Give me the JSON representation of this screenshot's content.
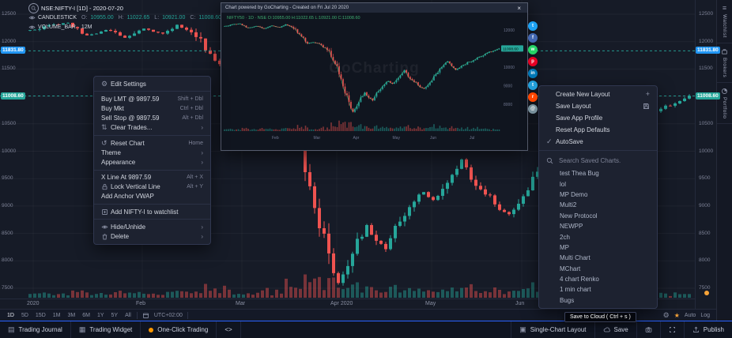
{
  "colors": {
    "bg": "#161b27",
    "panel": "#1d2230",
    "accent_blue": "#2962ff",
    "badge_blue": "#2196f3",
    "up_green": "#26a69a",
    "down_red": "#ef5350",
    "star_orange": "#f7a338",
    "one_click_orange": "#ff9800"
  },
  "legend": {
    "title": "NSE:NIFTY-I [1D] - 2020-07-20",
    "series": "CANDLESTICK",
    "o_label": "O:",
    "o_value": "10955.00",
    "h_label": "H:",
    "h_value": "11022.65",
    "l_label": "L:",
    "l_value": "10921.00",
    "c_label": "C:",
    "c_value": "11008.60",
    "volume_label": "VOLUME_BAR",
    "volume_value": "12M"
  },
  "price_axis": {
    "ticks": [
      "12500",
      "12000",
      "11500",
      "11000",
      "10500",
      "10000",
      "9500",
      "9000",
      "8500",
      "8000",
      "7500"
    ],
    "badge_blue_value": "11831.80",
    "badge_green_value": "11008.60"
  },
  "side_tabs": [
    {
      "label": "Watchlist",
      "icon": "list"
    },
    {
      "label": "Brokers",
      "icon": "briefcase"
    },
    {
      "label": "Portfolio",
      "icon": "pie"
    }
  ],
  "time_toolbar": {
    "ranges": [
      "1D",
      "5D",
      "15D",
      "1M",
      "3M",
      "6M",
      "1Y",
      "5Y",
      "All"
    ],
    "timezone": "UTC+02:00",
    "auto_label": "Auto",
    "log_label": "Log"
  },
  "bottom_bar": {
    "left": [
      {
        "icon": "journal",
        "label": "Trading Journal"
      },
      {
        "icon": "widget",
        "label": "Trading Widget"
      },
      {
        "icon": "dot",
        "label": "One-Click Trading"
      },
      {
        "icon": "code",
        "label": "<>"
      }
    ],
    "right": [
      {
        "icon": "layout",
        "label": "Single-Chart Layout"
      },
      {
        "icon": "cloud",
        "label": "Save"
      },
      {
        "icon": "camera",
        "label": ""
      },
      {
        "icon": "expand",
        "label": ""
      },
      {
        "icon": "publish",
        "label": "Publish"
      }
    ]
  },
  "context_menu": {
    "items": [
      {
        "icon": "gear",
        "label": "Edit Settings"
      },
      {
        "divider": true
      },
      {
        "label": "Buy LMT @ 9897.59",
        "shortcut": "Shift + Dbl"
      },
      {
        "label": "Buy Mkt",
        "shortcut": "Ctrl + Dbl"
      },
      {
        "label": "Sell Stop @ 9897.59",
        "shortcut": "Alt + Dbl"
      },
      {
        "icon": "clear",
        "label": "Clear Trades...",
        "submenu": true
      },
      {
        "divider": true
      },
      {
        "icon": "reset",
        "label": "Reset Chart",
        "shortcut": "Home"
      },
      {
        "label": "Theme",
        "submenu": true
      },
      {
        "label": "Appearance",
        "submenu": true
      },
      {
        "divider": true
      },
      {
        "label": "X Line At 9897.59",
        "shortcut": "Alt + X"
      },
      {
        "icon": "lock",
        "label": "Lock Vertical Line",
        "shortcut": "Alt + Y"
      },
      {
        "label": "Add Anchor VWAP"
      },
      {
        "divider": true
      },
      {
        "icon": "plusbox",
        "label": "Add NIFTY-I to watchlist"
      },
      {
        "divider": true
      },
      {
        "icon": "eye",
        "label": "Hide/Unhide",
        "submenu": true
      },
      {
        "icon": "trash",
        "label": "Delete",
        "submenu": true
      }
    ]
  },
  "layout_menu": {
    "items": [
      {
        "label": "Create New Layout",
        "right_icon": "plus"
      },
      {
        "label": "Save Layout",
        "right_icon": "save"
      },
      {
        "label": "Save App Profile"
      },
      {
        "label": "Reset App Defaults"
      },
      {
        "label": "AutoSave",
        "left_icon": "check"
      }
    ],
    "search_placeholder": "Search Saved Charts.",
    "saved_charts": [
      "test Thea Bug",
      "lol",
      "MP Demo",
      "Multi2",
      "New Protocol",
      "NEWPP",
      "2ch",
      "MP",
      "Multi Chart",
      "MChart",
      "4 chart Renko",
      "1 min chart",
      "Bugs"
    ]
  },
  "popup": {
    "title": "Chart powered by GoCharting - Created on Fri Jul 20 2020",
    "legend": "NIFTY50 · 1D · NSE   O:10955.00  H:11022.65  L:10921.00  C:11008.60",
    "watermark": "GoCharting",
    "close_label": "×",
    "badge_value": "11008.60",
    "share_icons": [
      {
        "name": "twitter",
        "color": "#1da1f2",
        "glyph": "t"
      },
      {
        "name": "facebook",
        "color": "#4267b2",
        "glyph": "f"
      },
      {
        "name": "whatsapp",
        "color": "#25d366",
        "glyph": "w"
      },
      {
        "name": "pinterest",
        "color": "#e60023",
        "glyph": "p"
      },
      {
        "name": "linkedin",
        "color": "#0077b5",
        "glyph": "in"
      },
      {
        "name": "telegram",
        "color": "#229ed9",
        "glyph": "t"
      },
      {
        "name": "reddit",
        "color": "#ff4500",
        "glyph": "r"
      },
      {
        "name": "email",
        "color": "#78909c",
        "glyph": "@"
      }
    ],
    "mini_price_ticks": [
      "12000",
      "11000",
      "10000",
      "9000",
      "8000"
    ],
    "mini_months": [
      {
        "label": "Feb",
        "day": 24
      },
      {
        "label": "Mar",
        "day": 45
      },
      {
        "label": "Apr",
        "day": 65
      },
      {
        "label": "May",
        "day": 85
      },
      {
        "label": "Jun",
        "day": 104
      },
      {
        "label": "Jul",
        "day": 124
      }
    ]
  },
  "tooltip": {
    "text": "Save to Cloud ( Ctrl + s )"
  },
  "chart_data": {
    "type": "candlestick",
    "symbol": "NSE:NIFTY-I",
    "interval": "1D",
    "date": "2020-07-20",
    "ylim": [
      7500,
      12500
    ],
    "num_candles": 140,
    "close_keypoints": [
      [
        0,
        12200
      ],
      [
        4,
        12280
      ],
      [
        8,
        12350
      ],
      [
        12,
        12100
      ],
      [
        16,
        12220
      ],
      [
        20,
        12080
      ],
      [
        24,
        12250
      ],
      [
        28,
        12150
      ],
      [
        31,
        12300
      ],
      [
        34,
        12200
      ],
      [
        37,
        11900
      ],
      [
        40,
        11550
      ],
      [
        42,
        11300
      ],
      [
        45,
        11350
      ],
      [
        48,
        11250
      ],
      [
        51,
        11050
      ],
      [
        53,
        10800
      ],
      [
        55,
        10300
      ],
      [
        57,
        9950
      ],
      [
        59,
        9200
      ],
      [
        61,
        8750
      ],
      [
        63,
        8100
      ],
      [
        65,
        7610
      ],
      [
        67,
        7900
      ],
      [
        69,
        8300
      ],
      [
        71,
        8650
      ],
      [
        73,
        8350
      ],
      [
        75,
        8250
      ],
      [
        77,
        8600
      ],
      [
        79,
        8800
      ],
      [
        81,
        9100
      ],
      [
        83,
        9250
      ],
      [
        85,
        9100
      ],
      [
        87,
        9300
      ],
      [
        89,
        9550
      ],
      [
        91,
        9850
      ],
      [
        93,
        9500
      ],
      [
        95,
        9300
      ],
      [
        97,
        9150
      ],
      [
        99,
        8950
      ],
      [
        101,
        8850
      ],
      [
        103,
        9050
      ],
      [
        105,
        9350
      ],
      [
        107,
        9580
      ],
      [
        109,
        9900
      ],
      [
        111,
        10150
      ],
      [
        113,
        10300
      ],
      [
        115,
        10050
      ],
      [
        117,
        9850
      ],
      [
        119,
        10000
      ],
      [
        121,
        10100
      ],
      [
        123,
        10250
      ],
      [
        125,
        10300
      ],
      [
        127,
        10450
      ],
      [
        129,
        10550
      ],
      [
        131,
        10650
      ],
      [
        133,
        10800
      ],
      [
        135,
        10850
      ],
      [
        137,
        10900
      ],
      [
        139,
        11008.6
      ]
    ],
    "months": [
      {
        "label": "2020",
        "day": 1
      },
      {
        "label": "Feb",
        "day": 24
      },
      {
        "label": "Mar",
        "day": 45
      },
      {
        "label": "Apr 2020",
        "day": 65
      },
      {
        "label": "May",
        "day": 85
      },
      {
        "label": "Jun",
        "day": 104
      }
    ],
    "levels": [
      {
        "value": 11831.8,
        "color": "#26a69a"
      },
      {
        "value": 11008.6,
        "color": "#26a69a"
      }
    ]
  }
}
